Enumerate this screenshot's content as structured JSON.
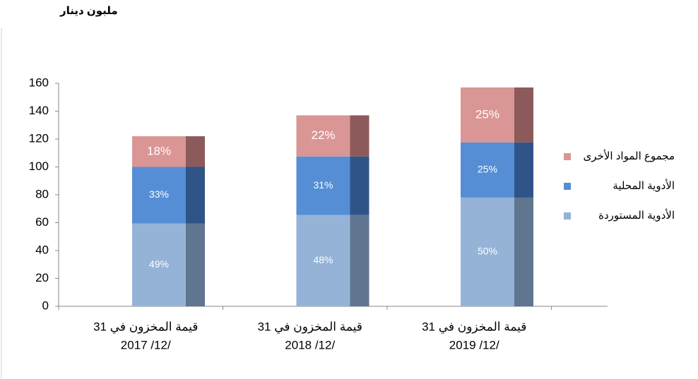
{
  "chart_data": {
    "type": "stacked_bar",
    "y_label": "ملبون دينار",
    "categories": [
      [
        "قيمة المخزون في 31",
        "2017 /12/"
      ],
      [
        "قيمة المخزون في 31",
        "2018 /12/"
      ],
      [
        "قيمة المخزون في 31",
        "2019 /12/"
      ]
    ],
    "series": [
      {
        "name": "الأدوية المستوردة",
        "color": "#95b3d7",
        "side_color": "#5f7590",
        "values": [
          59.5,
          65.5,
          78
        ],
        "share_labels": [
          "49%",
          "48%",
          "50%"
        ]
      },
      {
        "name": "الأدوية المحلية",
        "color": "#558ed5",
        "side_color": "#2f5588",
        "values": [
          40.5,
          42,
          39.5
        ],
        "share_labels": [
          "33%",
          "31%",
          "25%"
        ]
      },
      {
        "name": "مجموع المواد الأخرى",
        "color": "#d99694",
        "side_color": "#8c5a5a",
        "values": [
          22,
          29.5,
          39.5
        ],
        "share_labels": [
          "18%",
          "22%",
          "25%"
        ]
      }
    ],
    "ylim": [
      0,
      160
    ],
    "yticks": [
      0,
      20,
      40,
      60,
      80,
      100,
      120,
      140,
      160
    ],
    "legend": "right"
  }
}
